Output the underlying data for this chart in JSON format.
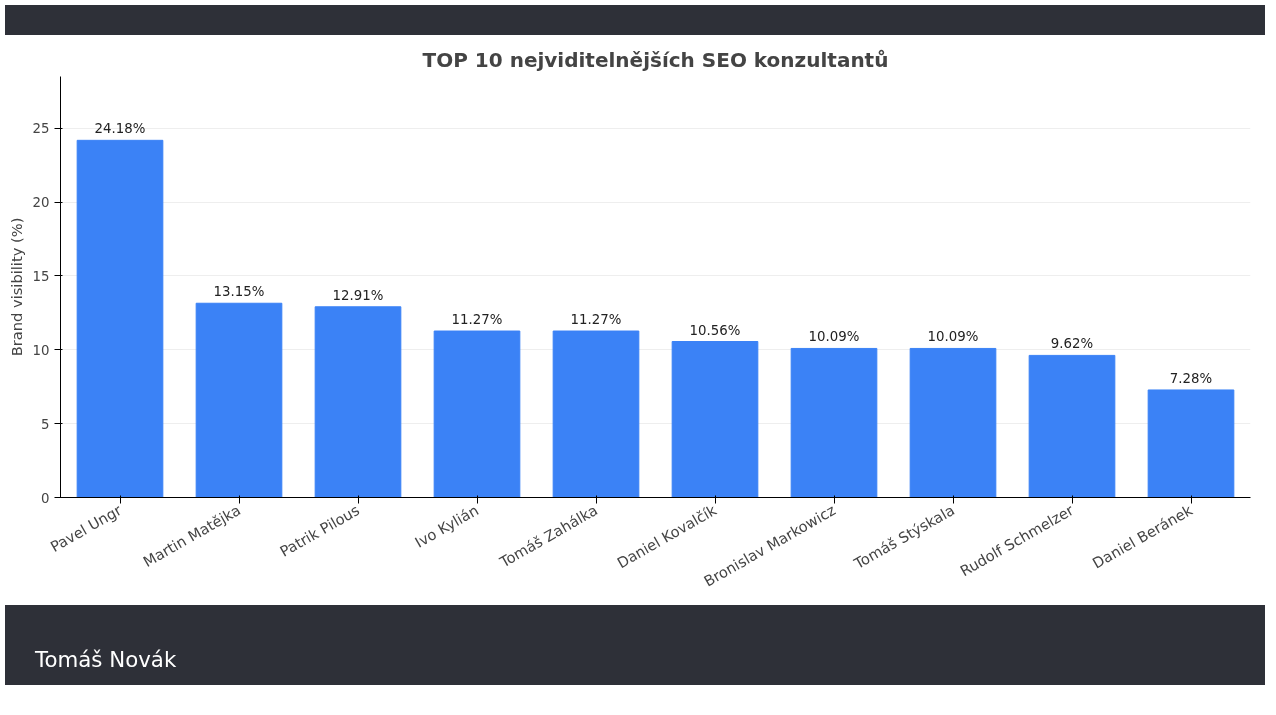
{
  "chart_data": {
    "type": "bar",
    "title": "TOP 10 nejviditelnějších SEO konzultantů",
    "ylabel": "Brand visibility (%)",
    "categories": [
      "Pavel Ungr",
      "Martin Matějka",
      "Patrik Pilous",
      "Ivo Kylián",
      "Tomáš Zahálka",
      "Daniel Kovalčík",
      "Bronislav Markowicz",
      "Tomáš Stýskala",
      "Rudolf Schmelzer",
      "Daniel Beránek"
    ],
    "values": [
      24.18,
      13.15,
      12.91,
      11.27,
      11.27,
      10.56,
      10.09,
      10.09,
      9.62,
      7.28
    ],
    "value_labels": [
      "24.18%",
      "13.15%",
      "12.91%",
      "11.27%",
      "11.27%",
      "10.56%",
      "10.09%",
      "10.09%",
      "9.62%",
      "7.28%"
    ],
    "color": "#3b82f6",
    "ylim": [
      0,
      28.5
    ],
    "yticks": [
      0,
      5,
      10,
      15,
      20,
      25
    ],
    "grid": "y",
    "annotations": [
      "Tomáš Novák"
    ]
  }
}
